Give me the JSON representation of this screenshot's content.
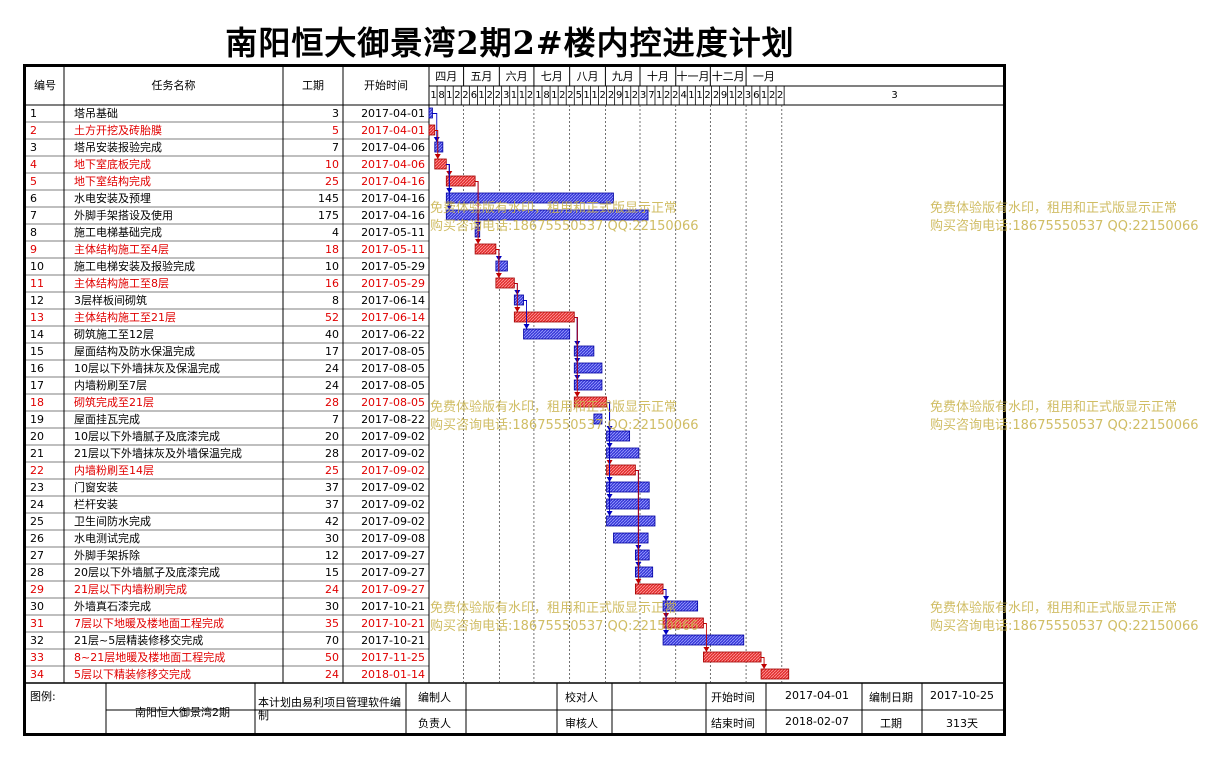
{
  "title": "南阳恒大御景湾2期2#楼内控进度计划",
  "header": {
    "id": "编号",
    "name": "任务名称",
    "duration": "工期",
    "start": "开始时间"
  },
  "months": [
    "四月",
    "五月",
    "六月",
    "七月",
    "八月",
    "九月",
    "十月",
    "十一月",
    "十二月",
    "一月"
  ],
  "days": [
    "1",
    "8",
    "15",
    "22",
    "29",
    "6",
    "13",
    "20",
    "27",
    "3",
    "10",
    "17",
    "24",
    "1",
    "8",
    "15",
    "22",
    "29",
    "5",
    "12",
    "19",
    "26",
    "2",
    "9",
    "16",
    "23",
    "30",
    "7",
    "14",
    "21",
    "28",
    "4",
    "11",
    "18",
    "25",
    "2",
    "9",
    "16",
    "23",
    "30",
    "6",
    "13",
    "20",
    "27",
    "3"
  ],
  "chart_data": {
    "type": "gantt",
    "title": "南阳恒大御景湾2期2#楼内控进度计划",
    "x_range": [
      "2017-04-01",
      "2018-02-07"
    ],
    "critical_color": "#e00000",
    "normal_color": "#2020c0",
    "tasks": [
      {
        "id": "1",
        "name": "塔吊基础",
        "duration": "3",
        "start": "2017-04-01",
        "critical": false
      },
      {
        "id": "2",
        "name": "土方开挖及砖胎膜",
        "duration": "5",
        "start": "2017-04-01",
        "critical": true
      },
      {
        "id": "3",
        "name": "塔吊安装报验完成",
        "duration": "7",
        "start": "2017-04-06",
        "critical": false
      },
      {
        "id": "4",
        "name": "地下室底板完成",
        "duration": "10",
        "start": "2017-04-06",
        "critical": true
      },
      {
        "id": "5",
        "name": "地下室结构完成",
        "duration": "25",
        "start": "2017-04-16",
        "critical": true
      },
      {
        "id": "6",
        "name": "水电安装及预埋",
        "duration": "145",
        "start": "2017-04-16",
        "critical": false
      },
      {
        "id": "7",
        "name": "外脚手架搭设及使用",
        "duration": "175",
        "start": "2017-04-16",
        "critical": false
      },
      {
        "id": "8",
        "name": "施工电梯基础完成",
        "duration": "4",
        "start": "2017-05-11",
        "critical": false
      },
      {
        "id": "9",
        "name": "主体结构施工至4层",
        "duration": "18",
        "start": "2017-05-11",
        "critical": true
      },
      {
        "id": "10",
        "name": "施工电梯安装及报验完成",
        "duration": "10",
        "start": "2017-05-29",
        "critical": false
      },
      {
        "id": "11",
        "name": "主体结构施工至8层",
        "duration": "16",
        "start": "2017-05-29",
        "critical": true
      },
      {
        "id": "12",
        "name": "3层样板间砌筑",
        "duration": "8",
        "start": "2017-06-14",
        "critical": false
      },
      {
        "id": "13",
        "name": "主体结构施工至21层",
        "duration": "52",
        "start": "2017-06-14",
        "critical": true
      },
      {
        "id": "14",
        "name": "砌筑施工至12层",
        "duration": "40",
        "start": "2017-06-22",
        "critical": false
      },
      {
        "id": "15",
        "name": "屋面结构及防水保温完成",
        "duration": "17",
        "start": "2017-08-05",
        "critical": false
      },
      {
        "id": "16",
        "name": "10层以下外墙抹灰及保温完成",
        "duration": "24",
        "start": "2017-08-05",
        "critical": false
      },
      {
        "id": "17",
        "name": "内墙粉刷至7层",
        "duration": "24",
        "start": "2017-08-05",
        "critical": false
      },
      {
        "id": "18",
        "name": "砌筑完成至21层",
        "duration": "28",
        "start": "2017-08-05",
        "critical": true
      },
      {
        "id": "19",
        "name": "屋面挂瓦完成",
        "duration": "7",
        "start": "2017-08-22",
        "critical": false
      },
      {
        "id": "20",
        "name": "10层以下外墙腻子及底漆完成",
        "duration": "20",
        "start": "2017-09-02",
        "critical": false
      },
      {
        "id": "21",
        "name": "21层以下外墙抹灰及外墙保温完成",
        "duration": "28",
        "start": "2017-09-02",
        "critical": false
      },
      {
        "id": "22",
        "name": "内墙粉刷至14层",
        "duration": "25",
        "start": "2017-09-02",
        "critical": true
      },
      {
        "id": "23",
        "name": "门窗安装",
        "duration": "37",
        "start": "2017-09-02",
        "critical": false
      },
      {
        "id": "24",
        "name": "栏杆安装",
        "duration": "37",
        "start": "2017-09-02",
        "critical": false
      },
      {
        "id": "25",
        "name": "卫生间防水完成",
        "duration": "42",
        "start": "2017-09-02",
        "critical": false
      },
      {
        "id": "26",
        "name": "水电测试完成",
        "duration": "30",
        "start": "2017-09-08",
        "critical": false
      },
      {
        "id": "27",
        "name": "外脚手架拆除",
        "duration": "12",
        "start": "2017-09-27",
        "critical": false
      },
      {
        "id": "28",
        "name": "20层以下外墙腻子及底漆完成",
        "duration": "15",
        "start": "2017-09-27",
        "critical": false
      },
      {
        "id": "29",
        "name": "21层以下内墙粉刷完成",
        "duration": "24",
        "start": "2017-09-27",
        "critical": true
      },
      {
        "id": "30",
        "name": "外墙真石漆完成",
        "duration": "30",
        "start": "2017-10-21",
        "critical": false
      },
      {
        "id": "31",
        "name": "7层以下地暖及楼地面工程完成",
        "duration": "35",
        "start": "2017-10-21",
        "critical": true
      },
      {
        "id": "32",
        "name": "21层~5层精装修移交完成",
        "duration": "70",
        "start": "2017-10-21",
        "critical": false
      },
      {
        "id": "33",
        "name": "8~21层地暖及楼地面工程完成",
        "duration": "50",
        "start": "2017-11-25",
        "critical": true
      },
      {
        "id": "34",
        "name": "5层以下精装修移交完成",
        "duration": "24",
        "start": "2018-01-14",
        "critical": true
      }
    ]
  },
  "footer": {
    "legend_label": "图例:",
    "project_name": "南阳恒大御景湾2期",
    "software_note": "本计划由易利项目管理软件编制",
    "editor_label": "编制人",
    "reviewer_label": "校对人",
    "manager_label": "负责人",
    "auditor_label": "审核人",
    "start_label": "开始时间",
    "start_value": "2017-04-01",
    "end_label": "结束时间",
    "end_value": "2018-02-07",
    "date_label": "编制日期",
    "date_value": "2017-10-25",
    "duration_label": "工期",
    "duration_value": "313天"
  },
  "watermark": {
    "line1": "免费体验版有水印，租用和正式版显示正常",
    "line2": "购买咨询电话:18675550537 QQ:22150066"
  }
}
